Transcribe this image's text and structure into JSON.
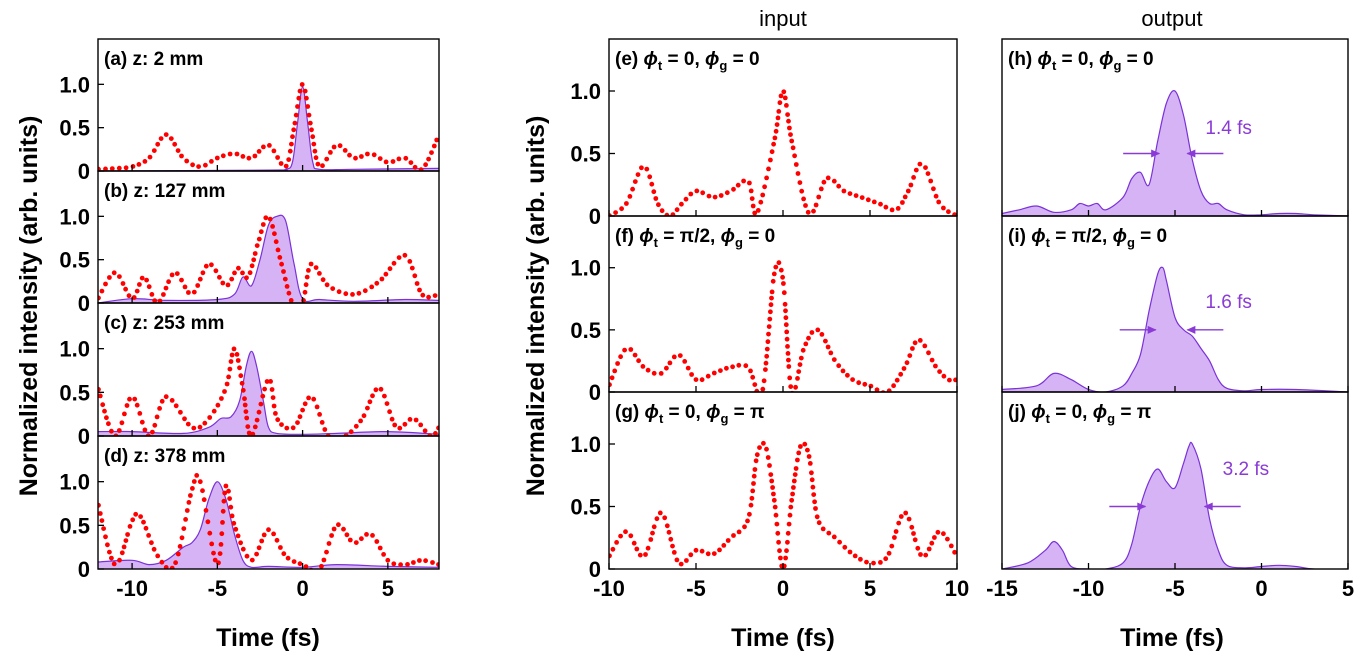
{
  "column_titles": {
    "input": "input",
    "output": "output"
  },
  "shared_ylabel": "Normalized intensity (arb. units)",
  "shared_xlabel": "Time (fs)",
  "colors": {
    "dotted": "#ff0000",
    "fill": "#d5b3f5",
    "line": "#7a32d6",
    "annotation": "#8a3bd6"
  },
  "chart_data": [
    {
      "type": "area",
      "panels": [
        {
          "label": "(a) z: 2 mm",
          "xlim": [
            -12,
            8
          ],
          "ylim": [
            0,
            1.5
          ],
          "yticks": [
            0,
            0.5,
            1.0
          ],
          "ytick_labels": [
            "0",
            "0.5",
            "1.0"
          ],
          "dotted": {
            "x": [
              -12,
              -11,
              -10,
              -9,
              -8,
              -7,
              -6,
              -5,
              -4,
              -3,
              -2,
              -1,
              -0.5,
              0,
              0.5,
              1,
              2,
              3,
              4,
              5,
              6,
              7,
              8
            ],
            "y": [
              0.02,
              0.03,
              0.05,
              0.15,
              0.42,
              0.15,
              0.05,
              0.15,
              0.2,
              0.15,
              0.3,
              0.05,
              0.5,
              1.0,
              0.5,
              0.05,
              0.3,
              0.15,
              0.2,
              0.1,
              0.15,
              0.02,
              0.42
            ]
          },
          "area": {
            "x": [
              -12,
              -2,
              -1,
              -0.6,
              -0.3,
              0,
              0.3,
              0.6,
              1,
              3,
              8
            ],
            "y": [
              0,
              0.01,
              0.02,
              0.1,
              0.55,
              0.97,
              0.55,
              0.1,
              0.02,
              0.02,
              0.03
            ]
          }
        },
        {
          "label": "(b) z: 127 mm",
          "xlim": [
            -12,
            8
          ],
          "ylim": [
            0,
            1.5
          ],
          "yticks": [
            0,
            0.5,
            1.0
          ],
          "ytick_labels": [
            "0",
            "0.5",
            "1.0"
          ],
          "dotted": {
            "x": [
              -12,
              -11,
              -10,
              -9.3,
              -8.5,
              -7.5,
              -6.5,
              -5.5,
              -4.5,
              -3.8,
              -3.2,
              -2.6,
              -2.0,
              -1.3,
              -0.6,
              0,
              0.5,
              1.5,
              3,
              4.5,
              6,
              7,
              8
            ],
            "y": [
              0.05,
              0.35,
              0.05,
              0.3,
              0.0,
              0.35,
              0.1,
              0.45,
              0.2,
              0.4,
              0.3,
              0.7,
              1.0,
              0.5,
              0.0,
              0.0,
              0.45,
              0.2,
              0.1,
              0.25,
              0.55,
              0.1,
              0.1
            ]
          },
          "area": {
            "x": [
              -12,
              -10,
              -8,
              -5,
              -4,
              -3.5,
              -3,
              -2.5,
              -2,
              -1.5,
              -1,
              -0.5,
              0,
              1,
              3,
              6,
              8
            ],
            "y": [
              0,
              0.05,
              0.03,
              0.04,
              0.1,
              0.3,
              0.2,
              0.5,
              0.9,
              1.0,
              0.95,
              0.45,
              0.05,
              0.04,
              0.02,
              0.04,
              0.03
            ]
          }
        },
        {
          "label": "(c) z: 253 mm",
          "xlim": [
            -12,
            8
          ],
          "ylim": [
            0,
            1.5
          ],
          "yticks": [
            0,
            0.5,
            1.0
          ],
          "ytick_labels": [
            "0",
            "0.5",
            "1.0"
          ],
          "dotted": {
            "x": [
              -12,
              -11,
              -10,
              -9,
              -8,
              -6.5,
              -5.5,
              -4.5,
              -4,
              -3.5,
              -3,
              -2,
              -1.5,
              -0.5,
              0.5,
              1.5,
              2.5,
              3.5,
              4.5,
              5.5,
              6.5,
              7.5,
              8
            ],
            "y": [
              0.55,
              0.0,
              0.45,
              0.0,
              0.45,
              0.1,
              0.2,
              0.55,
              1.0,
              0.55,
              0.0,
              0.65,
              0.2,
              0.1,
              0.45,
              0.0,
              0.0,
              0.2,
              0.55,
              0.1,
              0.2,
              0.0,
              0.1
            ]
          },
          "area": {
            "x": [
              -12,
              -10,
              -7,
              -5.5,
              -4.8,
              -4.2,
              -3.7,
              -3.3,
              -3,
              -2.7,
              -2.3,
              -2,
              -1.5,
              0,
              2,
              5,
              8
            ],
            "y": [
              0.05,
              0.05,
              0.03,
              0.1,
              0.2,
              0.22,
              0.4,
              0.8,
              0.97,
              0.8,
              0.4,
              0.1,
              0.03,
              0.02,
              0.03,
              0.05,
              0.02
            ]
          }
        },
        {
          "label": "(d) z: 378 mm",
          "xlim": [
            -12,
            8
          ],
          "ylim": [
            0,
            1.5
          ],
          "yticks": [
            0,
            0.5,
            1.0
          ],
          "ytick_labels": [
            "0",
            "0.5",
            "1.0"
          ],
          "dotted": {
            "x": [
              -12,
              -11,
              -10,
              -9.5,
              -8.5,
              -7.5,
              -6.5,
              -6,
              -5,
              -4.5,
              -4,
              -3,
              -2,
              -1,
              0,
              1,
              2,
              3,
              4,
              5,
              6,
              7,
              8
            ],
            "y": [
              0.75,
              0.05,
              0.55,
              0.6,
              0.15,
              0.05,
              0.9,
              1.0,
              0.05,
              0.95,
              0.5,
              0.1,
              0.45,
              0.15,
              0.05,
              0.0,
              0.5,
              0.3,
              0.4,
              0.1,
              0.05,
              0.1,
              0.05
            ]
          },
          "area": {
            "x": [
              -12,
              -10,
              -9,
              -8,
              -7,
              -6.5,
              -6,
              -5.5,
              -5,
              -4.5,
              -4,
              -3.5,
              -3,
              -2,
              0,
              2,
              5,
              8
            ],
            "y": [
              0.08,
              0.1,
              0.05,
              0.1,
              0.25,
              0.3,
              0.45,
              0.8,
              1.0,
              0.8,
              0.4,
              0.1,
              0.02,
              0.03,
              0.02,
              0.05,
              0.03,
              0.02
            ]
          }
        }
      ],
      "xticks": [
        -10,
        -5,
        0,
        5
      ],
      "xtick_labels": [
        "-10",
        "-5",
        "0",
        "5"
      ]
    },
    {
      "type": "line",
      "panels": [
        {
          "label_parts": [
            "(e) ",
            "ϕ",
            "t",
            " = 0, ",
            "ϕ",
            "g",
            " = 0"
          ],
          "xlim": [
            -10,
            10
          ],
          "ylim": [
            0,
            1.4
          ],
          "yticks": [
            0,
            0.5,
            1.0
          ],
          "ytick_labels": [
            "0",
            "0.5",
            "1.0"
          ],
          "dotted": {
            "x": [
              -10,
              -9,
              -8,
              -7.2,
              -6.5,
              -5.8,
              -5,
              -4,
              -3,
              -2,
              -1.5,
              -0.5,
              0,
              0.5,
              1.5,
              2.5,
              3.5,
              4.5,
              5.5,
              6.5,
              7.2,
              8,
              9,
              10
            ],
            "y": [
              0.0,
              0.1,
              0.4,
              0.1,
              0.0,
              0.1,
              0.2,
              0.15,
              0.2,
              0.28,
              0.02,
              0.6,
              1.0,
              0.6,
              0.02,
              0.3,
              0.2,
              0.15,
              0.1,
              0.05,
              0.2,
              0.42,
              0.1,
              0.0
            ]
          }
        },
        {
          "label_parts": [
            "(f) ",
            "ϕ",
            "t",
            " = π/2, ",
            "ϕ",
            "g",
            " = 0"
          ],
          "xlim": [
            -10,
            10
          ],
          "ylim": [
            0,
            1.4
          ],
          "yticks": [
            0,
            0.5,
            1.0
          ],
          "ytick_labels": [
            "0",
            "0.5",
            "1.0"
          ],
          "dotted": {
            "x": [
              -10,
              -9,
              -8,
              -7,
              -6,
              -5,
              -4,
              -3,
              -2,
              -1.2,
              -0.5,
              0,
              0.5,
              1.2,
              2,
              3,
              4,
              5,
              6,
              7,
              7.8,
              8.8,
              9.5,
              10
            ],
            "y": [
              0.05,
              0.35,
              0.2,
              0.15,
              0.3,
              0.1,
              0.15,
              0.2,
              0.2,
              0.0,
              0.95,
              0.9,
              0.0,
              0.35,
              0.5,
              0.25,
              0.1,
              0.05,
              0.0,
              0.2,
              0.42,
              0.2,
              0.1,
              0.1
            ]
          }
        },
        {
          "label_parts": [
            "(g) ",
            "ϕ",
            "t",
            " = 0, ",
            "ϕ",
            "g",
            " = π"
          ],
          "xlim": [
            -10,
            10
          ],
          "ylim": [
            0,
            1.4
          ],
          "yticks": [
            0,
            0.5,
            1.0
          ],
          "ytick_labels": [
            "0",
            "0.5",
            "1.0"
          ],
          "dotted": {
            "x": [
              -10,
              -9,
              -8,
              -7,
              -6,
              -5,
              -4,
              -3,
              -2,
              -1.5,
              -1,
              -0.5,
              0,
              0.5,
              1,
              1.5,
              2,
              3,
              4,
              5,
              6,
              7,
              8,
              9,
              10
            ],
            "y": [
              0.1,
              0.3,
              0.1,
              0.45,
              0.05,
              0.15,
              0.12,
              0.25,
              0.4,
              0.9,
              0.98,
              0.55,
              0.0,
              0.55,
              0.98,
              0.9,
              0.4,
              0.25,
              0.12,
              0.05,
              0.1,
              0.45,
              0.1,
              0.3,
              0.1
            ]
          }
        }
      ],
      "xticks": [
        -10,
        -5,
        0,
        5,
        10
      ],
      "xtick_labels": [
        "-10",
        "-5",
        "0",
        "5",
        "10"
      ]
    },
    {
      "type": "area",
      "panels": [
        {
          "label_parts": [
            "(h) ",
            "ϕ",
            "t",
            " = 0, ",
            "ϕ",
            "g",
            " = 0"
          ],
          "xlim": [
            -15,
            5
          ],
          "ylim": [
            0,
            1.4
          ],
          "annotation": "1.4 fs",
          "fwhm_half": 0.7,
          "fwhm_center": -5.1,
          "fwhm_level": 0.5,
          "area": {
            "x": [
              -15,
              -14,
              -13,
              -12,
              -11,
              -10.5,
              -10,
              -9.5,
              -9,
              -8,
              -7.5,
              -7,
              -6.5,
              -6,
              -5.5,
              -5,
              -4.5,
              -4,
              -3.5,
              -3,
              -2.5,
              -2,
              -1,
              0,
              1,
              2,
              3,
              5
            ],
            "y": [
              0.02,
              0.05,
              0.08,
              0.03,
              0.05,
              0.1,
              0.08,
              0.1,
              0.05,
              0.15,
              0.3,
              0.35,
              0.25,
              0.6,
              0.9,
              1.0,
              0.8,
              0.45,
              0.2,
              0.1,
              0.1,
              0.05,
              0.01,
              0.01,
              0.02,
              0.02,
              0.01,
              0.0
            ]
          }
        },
        {
          "label_parts": [
            "(i) ",
            "ϕ",
            "t",
            " = π/2, ",
            "ϕ",
            "g",
            " = 0"
          ],
          "xlim": [
            -15,
            5
          ],
          "ylim": [
            0,
            1.4
          ],
          "annotation": "1.6 fs",
          "fwhm_half": 0.8,
          "fwhm_center": -5.2,
          "fwhm_level": 0.5,
          "area": {
            "x": [
              -15,
              -13,
              -12,
              -11,
              -10,
              -9,
              -8,
              -7.5,
              -7,
              -6.5,
              -6,
              -5.7,
              -5.5,
              -5,
              -4.5,
              -4,
              -3.5,
              -3,
              -2.5,
              -2,
              -1,
              0,
              2,
              5
            ],
            "y": [
              0.02,
              0.05,
              0.15,
              0.1,
              0.02,
              0.0,
              0.05,
              0.15,
              0.3,
              0.65,
              0.95,
              1.0,
              0.9,
              0.6,
              0.5,
              0.45,
              0.35,
              0.25,
              0.1,
              0.03,
              0.01,
              0.02,
              0.02,
              0.0
            ]
          }
        },
        {
          "label_parts": [
            "(j) ",
            "ϕ",
            "t",
            " = 0, ",
            "ϕ",
            "g",
            " = π"
          ],
          "xlim": [
            -15,
            5
          ],
          "ylim": [
            0,
            1.4
          ],
          "annotation": "3.2 fs",
          "fwhm_half": 1.6,
          "fwhm_center": -5.0,
          "fwhm_level": 0.5,
          "area": {
            "x": [
              -15,
              -13.5,
              -12.5,
              -12,
              -11.5,
              -11,
              -10,
              -9,
              -8,
              -7.5,
              -7,
              -6.5,
              -6,
              -5.5,
              -5,
              -4.5,
              -4.2,
              -4,
              -3.5,
              -3,
              -2.5,
              -2,
              -1,
              0,
              1,
              2,
              3,
              5
            ],
            "y": [
              0.0,
              0.05,
              0.15,
              0.22,
              0.15,
              0.02,
              0.0,
              0.0,
              0.05,
              0.2,
              0.5,
              0.7,
              0.8,
              0.7,
              0.65,
              0.85,
              0.98,
              1.0,
              0.8,
              0.4,
              0.15,
              0.03,
              0.01,
              0.02,
              0.03,
              0.02,
              0.0,
              0.0
            ]
          }
        }
      ],
      "xticks": [
        -15,
        -10,
        -5,
        0,
        5
      ],
      "xtick_labels": [
        "-15",
        "-10",
        "-5",
        "0",
        "5"
      ]
    }
  ]
}
